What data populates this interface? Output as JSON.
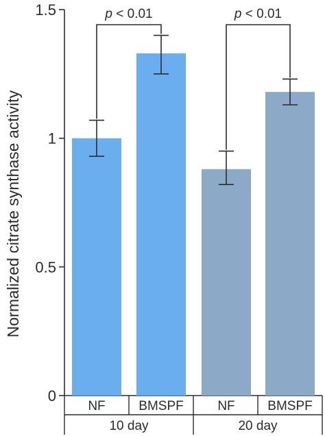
{
  "chart_data": {
    "type": "bar",
    "ylabel": "Normalized citrate synthase activity",
    "ylim": [
      0,
      1.5
    ],
    "yticks": [
      {
        "value": 0,
        "label": "0"
      },
      {
        "value": 0.5,
        "label": "0.5"
      },
      {
        "value": 1,
        "label": "1"
      },
      {
        "value": 1.5,
        "label": "1.5"
      }
    ],
    "grid": false,
    "legend": "none",
    "groups": [
      {
        "label": "10 day",
        "color": "#6aaef0"
      },
      {
        "label": "20 day",
        "color": "#8ca9c8"
      }
    ],
    "bars": [
      {
        "category": "NF",
        "group": 0,
        "value": 1.0,
        "error_low": 0.93,
        "error_high": 1.07
      },
      {
        "category": "BMSPF",
        "group": 0,
        "value": 1.33,
        "error_low": 1.25,
        "error_high": 1.4
      },
      {
        "category": "NF",
        "group": 1,
        "value": 0.88,
        "error_low": 0.82,
        "error_high": 0.95
      },
      {
        "category": "BMSPF",
        "group": 1,
        "value": 1.18,
        "error_low": 1.13,
        "error_high": 1.23
      }
    ],
    "significance": [
      {
        "from": 0,
        "to": 1,
        "p_symbol": "p",
        "p_rest": " < 0.01"
      },
      {
        "from": 2,
        "to": 3,
        "p_symbol": "p",
        "p_rest": " < 0.01"
      }
    ]
  }
}
